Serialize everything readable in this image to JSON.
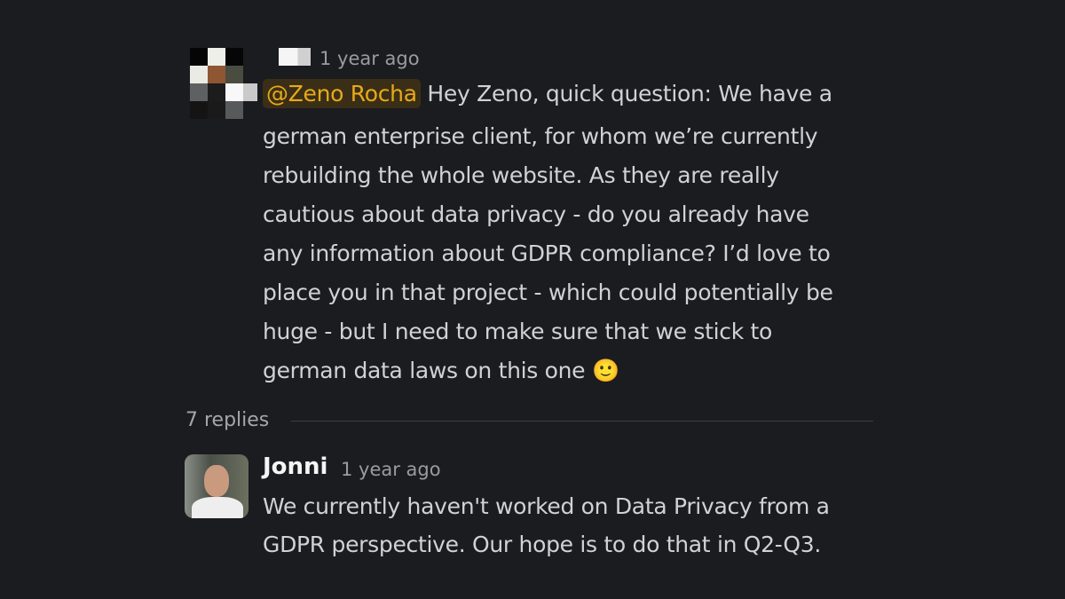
{
  "parent_message": {
    "timestamp": "1 year ago",
    "mention": "@Zeno Rocha",
    "lines": [
      "Hey Zeno, quick question: We have a",
      "german enterprise client, for whom we’re currently",
      "rebuilding the whole website. As they are really",
      "cautious about data privacy - do you already have",
      "any information about GDPR compliance? I’d love to",
      "place you in that project - which could potentially be",
      "huge - but I need to make sure that we stick to",
      "german data laws on this one"
    ],
    "emoji": "🙂"
  },
  "thread": {
    "replies_label": "7 replies"
  },
  "reply": {
    "author": "Jonni",
    "timestamp": "1 year ago",
    "lines": [
      "We currently haven't worked on Data Privacy from a",
      "GDPR perspective. Our hope is to do that in Q2-Q3."
    ]
  },
  "colors": {
    "background": "#1b1c20",
    "mention_bg": "#3a2f16",
    "mention_text": "#e8a91a",
    "text": "#d1d2d3"
  }
}
